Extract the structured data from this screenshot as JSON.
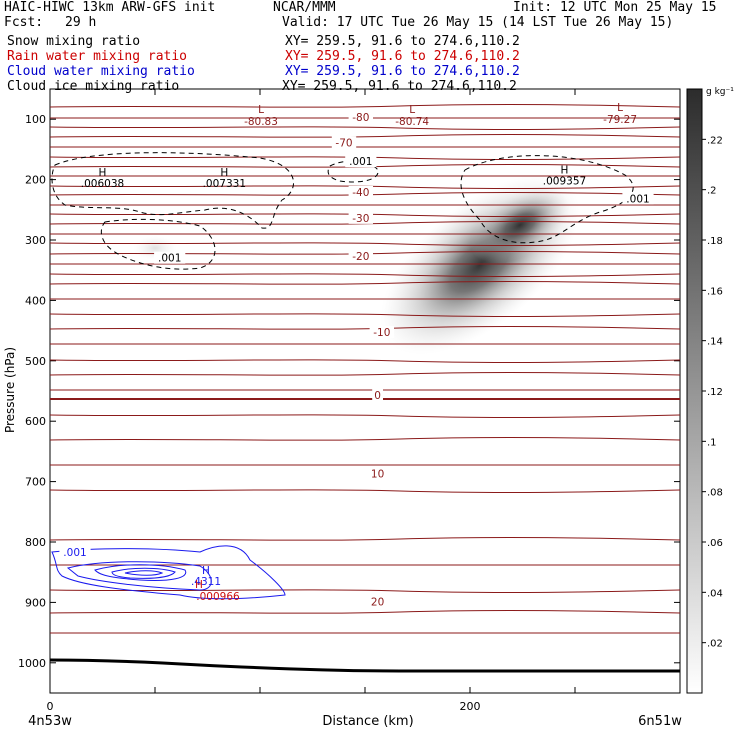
{
  "header": {
    "model": "HAIC-HIWC 13km ARW-GFS init",
    "org": "NCAR/MMM",
    "init": "Init: 12 UTC Mon 25 May 15",
    "fcst_label": "Fcst:",
    "fcst_value": "29 h",
    "valid": "Valid: 17 UTC Tue 26 May 15 (14 LST Tue 26 May 15)"
  },
  "fields": [
    {
      "label": "Snow mixing ratio",
      "xy": "XY= 259.5, 91.6 to 274.6,110.2",
      "color": "#000000"
    },
    {
      "label": "Rain water mixing ratio",
      "xy": "XY= 259.5, 91.6 to 274.6,110.2",
      "color": "#cc0000"
    },
    {
      "label": "Cloud water mixing ratio",
      "xy": "XY= 259.5, 91.6 to 274.6,110.2",
      "color": "#0000cc"
    },
    {
      "label": "Cloud ice mixing ratio",
      "xy": "XY= 259.5, 91.6 to 274.6,110.2",
      "color": "#000000"
    }
  ],
  "colors": {
    "temperature": "#8b1a1a",
    "cloud_water": "#1a1aee",
    "rain": "#cc1111",
    "terrain": "#000000"
  },
  "chart_data": {
    "type": "cross-section",
    "xlabel": "Distance (km)",
    "ylabel": "Pressure (hPa)",
    "xlim": [
      0,
      300
    ],
    "ylim": [
      1050,
      50
    ],
    "x_ticks": [
      0,
      200
    ],
    "y_ticks": [
      100,
      200,
      300,
      400,
      500,
      600,
      700,
      800,
      900,
      1000
    ],
    "left_endpoint": "4n53w",
    "right_endpoint": "6n51w",
    "colorbar": {
      "unit": "g kg⁻¹",
      "ticks": [
        ".22",
        ".2",
        ".18",
        ".16",
        ".14",
        ".12",
        ".1",
        ".08",
        ".06",
        ".04",
        ".02"
      ],
      "range": [
        0,
        0.24
      ]
    },
    "temperature_labels": [
      {
        "text": "-80",
        "x": 148,
        "p": 103
      },
      {
        "text": "-70",
        "x": 140,
        "p": 145
      },
      {
        "text": "-40",
        "x": 148,
        "p": 227
      },
      {
        "text": "-30",
        "x": 148,
        "p": 270
      },
      {
        "text": "-20",
        "x": 148,
        "p": 333
      },
      {
        "text": "-10",
        "x": 158,
        "p": 459
      },
      {
        "text": "0",
        "x": 156,
        "p": 563
      },
      {
        "text": "10",
        "x": 156,
        "p": 693
      },
      {
        "text": "20",
        "x": 156,
        "p": 905
      }
    ],
    "temperature_extrema": [
      {
        "type": "L",
        "value": "-80.83",
        "x": 100,
        "p": 103
      },
      {
        "type": "L",
        "value": "-80.74",
        "x": 172,
        "p": 103
      },
      {
        "type": "L",
        "value": "-79.27",
        "x": 271,
        "p": 100
      }
    ],
    "cloud_ice_labels": [
      {
        "text": ".001",
        "x": 148,
        "p": 176
      },
      {
        "text": ".001",
        "x": 280,
        "p": 238
      },
      {
        "text": ".001",
        "x": 57,
        "p": 336
      }
    ],
    "cloud_ice_maxima": [
      {
        "type": "H",
        "value": ".006038",
        "x": 25,
        "p": 207
      },
      {
        "type": "H",
        "value": ".007331",
        "x": 83,
        "p": 207
      },
      {
        "type": "H",
        "value": ".009357",
        "x": 245,
        "p": 203
      }
    ],
    "cloud_water": {
      "label": ".001",
      "max_type": "H",
      "max_value": ".4311",
      "x_center": 50,
      "p_center": 860
    },
    "rain": {
      "max_type": "H",
      "max_value": ".000966",
      "x": 85,
      "p": 883
    }
  }
}
